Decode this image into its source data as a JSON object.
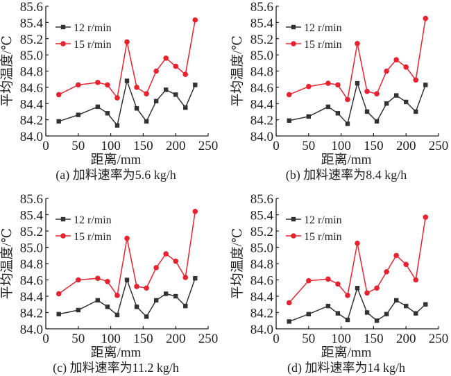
{
  "figure": {
    "colors": {
      "series_12": "#333333",
      "series_15": "#e8232f",
      "axis": "#231f20"
    }
  },
  "chart_data": [
    {
      "type": "line",
      "caption": "(a) 加料速率为5.6 kg/h",
      "xlabel": "距离/mm",
      "ylabel": "平均温度/℃",
      "xlim": [
        0,
        250
      ],
      "ylim": [
        84.0,
        85.6
      ],
      "xticks": [
        0,
        50,
        100,
        150,
        200,
        250
      ],
      "yticks": [
        "84.0",
        "84.2",
        "84.4",
        "84.6",
        "84.8",
        "85.0",
        "85.2",
        "85.4",
        "85.6"
      ],
      "grid": false,
      "legend_position": "top-left",
      "x": [
        20,
        50,
        80,
        95,
        110,
        125,
        140,
        155,
        170,
        185,
        200,
        215,
        230
      ],
      "series": [
        {
          "name": "12 r/min",
          "marker": "square",
          "values": [
            84.18,
            84.26,
            84.36,
            84.28,
            84.13,
            84.68,
            84.34,
            84.18,
            84.43,
            84.57,
            84.51,
            84.35,
            84.63
          ]
        },
        {
          "name": "15 r/min",
          "marker": "circle",
          "values": [
            84.51,
            84.63,
            84.66,
            84.63,
            84.47,
            85.16,
            84.6,
            84.52,
            84.8,
            84.96,
            84.86,
            84.76,
            85.43
          ]
        }
      ]
    },
    {
      "type": "line",
      "caption": "(b) 加料速率为8.4 kg/h",
      "xlabel": "距离/mm",
      "ylabel": "平均温度/℃",
      "xlim": [
        0,
        250
      ],
      "ylim": [
        84.0,
        85.6
      ],
      "xticks": [
        0,
        50,
        100,
        150,
        200,
        250
      ],
      "yticks": [
        "84.0",
        "84.2",
        "84.4",
        "84.6",
        "84.8",
        "85.0",
        "85.2",
        "85.4",
        "85.6"
      ],
      "grid": false,
      "legend_position": "top-left",
      "x": [
        20,
        50,
        80,
        95,
        110,
        125,
        140,
        155,
        170,
        185,
        200,
        215,
        230
      ],
      "series": [
        {
          "name": "12 r/min",
          "marker": "square",
          "values": [
            84.19,
            84.24,
            84.36,
            84.28,
            84.15,
            84.65,
            84.3,
            84.18,
            84.4,
            84.5,
            84.42,
            84.3,
            84.63
          ]
        },
        {
          "name": "15 r/min",
          "marker": "circle",
          "values": [
            84.51,
            84.61,
            84.65,
            84.63,
            84.45,
            85.14,
            84.55,
            84.52,
            84.8,
            84.94,
            84.85,
            84.69,
            85.45
          ]
        }
      ]
    },
    {
      "type": "line",
      "caption": "(c) 加料速率为11.2 kg/h",
      "xlabel": "距离/mm",
      "ylabel": "平均温度/℃",
      "xlim": [
        0,
        250
      ],
      "ylim": [
        84.0,
        85.6
      ],
      "xticks": [
        0,
        50,
        100,
        150,
        200,
        250
      ],
      "yticks": [
        "84.0",
        "84.2",
        "84.4",
        "84.6",
        "84.8",
        "85.0",
        "85.2",
        "85.4",
        "85.6"
      ],
      "grid": false,
      "legend_position": "top-left",
      "x": [
        20,
        50,
        80,
        95,
        110,
        125,
        140,
        155,
        170,
        185,
        200,
        215,
        230
      ],
      "series": [
        {
          "name": "12 r/min",
          "marker": "square",
          "values": [
            84.18,
            84.23,
            84.35,
            84.27,
            84.17,
            84.6,
            84.27,
            84.15,
            84.35,
            84.43,
            84.4,
            84.28,
            84.62
          ]
        },
        {
          "name": "15 r/min",
          "marker": "circle",
          "values": [
            84.43,
            84.6,
            84.62,
            84.58,
            84.41,
            85.11,
            84.52,
            84.5,
            84.75,
            84.92,
            84.83,
            84.63,
            85.44
          ]
        }
      ]
    },
    {
      "type": "line",
      "caption": "(d) 加料速率为14 kg/h",
      "xlabel": "距离/mm",
      "ylabel": "平均温度/℃",
      "xlim": [
        0,
        250
      ],
      "ylim": [
        84.0,
        85.6
      ],
      "xticks": [
        0,
        50,
        100,
        150,
        200,
        250
      ],
      "yticks": [
        "84.0",
        "84.2",
        "84.4",
        "84.6",
        "84.8",
        "85.0",
        "85.2",
        "85.4",
        "85.6"
      ],
      "grid": false,
      "legend_position": "top-left",
      "x": [
        20,
        50,
        80,
        95,
        110,
        125,
        140,
        155,
        170,
        185,
        200,
        215,
        230
      ],
      "series": [
        {
          "name": "12 r/min",
          "marker": "square",
          "values": [
            84.09,
            84.18,
            84.28,
            84.19,
            84.11,
            84.5,
            84.2,
            84.1,
            84.18,
            84.35,
            84.28,
            84.19,
            84.3
          ]
        },
        {
          "name": "15 r/min",
          "marker": "circle",
          "values": [
            84.32,
            84.59,
            84.61,
            84.55,
            84.41,
            85.05,
            84.44,
            84.5,
            84.7,
            84.9,
            84.79,
            84.6,
            85.37
          ]
        }
      ]
    }
  ]
}
